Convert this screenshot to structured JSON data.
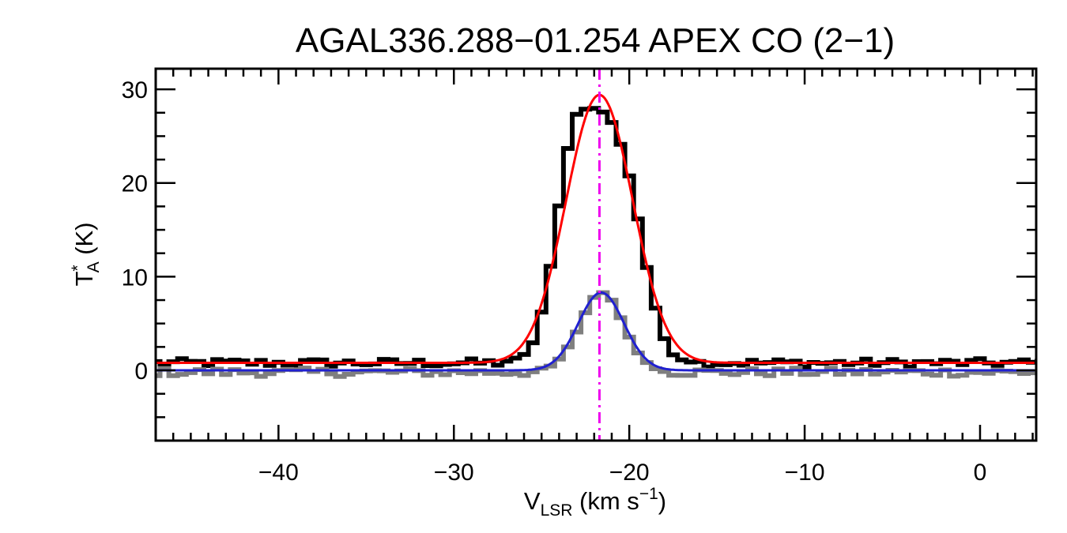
{
  "chart_data": {
    "type": "line",
    "title": "AGAL336.288−01.254  APEX CO (2−1)",
    "xlabel": {
      "main": "V",
      "sub": "LSR",
      "units": " (km s",
      "sup": "−1",
      "close": ")"
    },
    "ylabel": {
      "main": "T",
      "sup": "*",
      "sub": "A",
      "units": " (K)"
    },
    "xlim": [
      -47,
      3.2
    ],
    "ylim": [
      -7.5,
      32.2
    ],
    "xticks": [
      -40,
      -30,
      -20,
      -10,
      0
    ],
    "xtick_labels": [
      "−40",
      "−30",
      "−20",
      "−10",
      "0"
    ],
    "yticks": [
      0,
      10,
      20,
      30
    ],
    "ytick_labels": [
      "0",
      "10",
      "20",
      "30"
    ],
    "x_minor_step": 1,
    "y_minor_step": 2.5,
    "grid": false,
    "series": [
      {
        "role": "12CO-spectrum",
        "style": "step",
        "color": "#000000",
        "baseline": 0.8,
        "x": [
          -27.0,
          -26.5,
          -26.0,
          -25.5,
          -25.0,
          -24.5,
          -24.0,
          -23.5,
          -23.0,
          -22.5,
          -22.0,
          -21.5,
          -21.0,
          -20.5,
          -20.0,
          -19.5,
          -19.0,
          -18.5,
          -18.0,
          -17.5,
          -17.0,
          -16.5,
          -16.0
        ],
        "y": [
          1.0,
          1.2,
          1.6,
          3.0,
          6.2,
          11.0,
          17.5,
          23.8,
          27.3,
          28.0,
          27.9,
          27.6,
          26.4,
          24.2,
          20.8,
          16.2,
          11.0,
          6.5,
          3.4,
          1.8,
          1.2,
          1.0,
          0.9
        ]
      },
      {
        "role": "13CO-spectrum",
        "style": "step",
        "color": "#7f7f7f",
        "baseline": -0.2,
        "x": [
          -25.0,
          -24.5,
          -24.0,
          -23.5,
          -23.0,
          -22.5,
          -22.0,
          -21.5,
          -21.0,
          -20.5,
          -20.0,
          -19.5,
          -19.0,
          -18.5,
          -18.0
        ],
        "y": [
          0.1,
          0.4,
          1.2,
          2.4,
          4.0,
          6.2,
          7.8,
          8.3,
          7.6,
          5.5,
          3.6,
          2.0,
          0.8,
          0.2,
          0.0
        ]
      },
      {
        "role": "12CO-gaussian-fit",
        "style": "gaussian",
        "color": "#ff0000",
        "amplitude": 28.6,
        "center": -21.7,
        "sigma": 1.9,
        "baseline": 0.8
      },
      {
        "role": "13CO-gaussian-fit",
        "style": "gaussian",
        "color": "#2020d0",
        "amplitude": 8.3,
        "center": -21.6,
        "sigma": 1.3,
        "baseline": 0.0
      }
    ],
    "reference_line": {
      "x": -21.7,
      "color": "#ee00ee",
      "style": "dash-dot"
    }
  }
}
